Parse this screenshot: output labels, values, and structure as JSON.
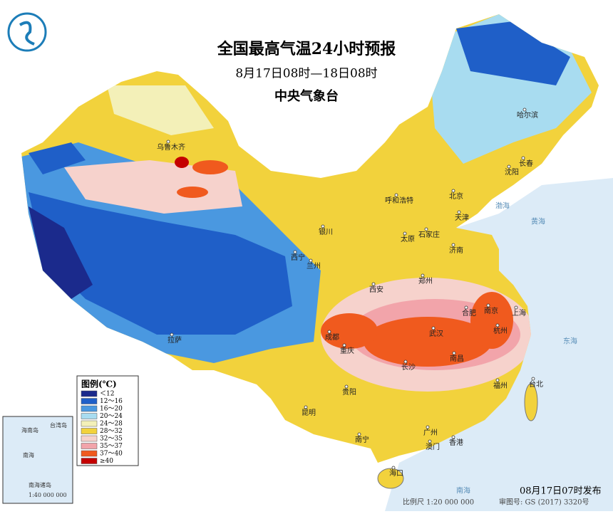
{
  "header": {
    "title": "全国最高气温24小时预报",
    "subtitle": "8月17日08时—18日08时",
    "agency": "中央气象台"
  },
  "legend": {
    "title": "图例(℃)",
    "items": [
      {
        "label": "＜12",
        "color": "#1b2a8c"
      },
      {
        "label": "12～16",
        "color": "#1f5fc8"
      },
      {
        "label": "16～20",
        "color": "#4a98e0"
      },
      {
        "label": "20～24",
        "color": "#a8dcf0"
      },
      {
        "label": "24～28",
        "color": "#f3f0b8"
      },
      {
        "label": "28～32",
        "color": "#f2d23c"
      },
      {
        "label": "32～35",
        "color": "#f6d2cc"
      },
      {
        "label": "35～37",
        "color": "#f2a4aa"
      },
      {
        "label": "37～40",
        "color": "#f05a1e"
      },
      {
        "label": "≥40",
        "color": "#c40000"
      }
    ]
  },
  "cities": [
    "乌鲁木齐",
    "拉萨",
    "西宁",
    "兰州",
    "银川",
    "呼和浩特",
    "北京",
    "天津",
    "石家庄",
    "太原",
    "济南",
    "郑州",
    "西安",
    "成都",
    "重庆",
    "贵阳",
    "昆明",
    "南宁",
    "广州",
    "澳门",
    "香港",
    "海口",
    "长沙",
    "武汉",
    "南昌",
    "合肥",
    "南京",
    "上海",
    "杭州",
    "福州",
    "台北",
    "沈阳",
    "长春",
    "哈尔滨"
  ],
  "seas": [
    "渤海",
    "黄海",
    "东海",
    "南海"
  ],
  "inset": {
    "labels": [
      "海南岛",
      "台湾岛",
      "南海",
      "南海诸岛"
    ],
    "scale": "1:40 000 000"
  },
  "footer": {
    "issued": "08月17日07时发布",
    "scale": "比例尺 1:20 000 000",
    "approval": "审图号: GS (2017) 3320号"
  }
}
